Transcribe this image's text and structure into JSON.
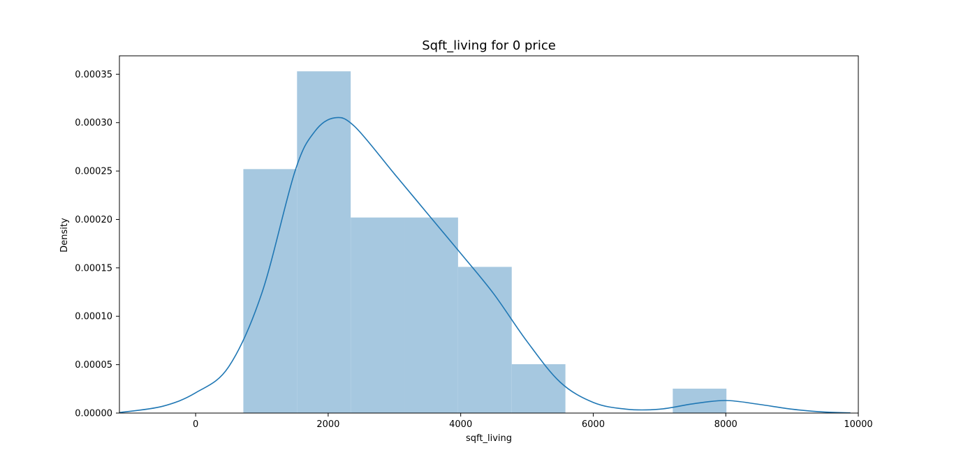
{
  "chart_data": {
    "type": "bar",
    "title": "Sqft_living for 0 price",
    "xlabel": "sqft_living",
    "ylabel": "Density",
    "xlim": [
      -1150,
      10000
    ],
    "ylim": [
      0,
      0.000369
    ],
    "grid": false,
    "legend": "none",
    "x_ticks": [
      0,
      2000,
      4000,
      6000,
      8000,
      10000
    ],
    "x_tick_labels": [
      "0",
      "2000",
      "4000",
      "6000",
      "8000",
      "10000"
    ],
    "y_ticks": [
      0,
      5e-05,
      0.0001,
      0.00015,
      0.0002,
      0.00025,
      0.0003,
      0.00035
    ],
    "y_tick_labels": [
      "0.00000",
      "0.00005",
      "0.00010",
      "0.00015",
      "0.00020",
      "0.00025",
      "0.00030",
      "0.00035"
    ],
    "histogram": {
      "color": "#a6c8e0",
      "bins": [
        {
          "start": 720,
          "end": 1530,
          "density": 0.000252
        },
        {
          "start": 1530,
          "end": 2340,
          "density": 0.000353
        },
        {
          "start": 2340,
          "end": 3150,
          "density": 0.000202
        },
        {
          "start": 3150,
          "end": 3960,
          "density": 0.000202
        },
        {
          "start": 3960,
          "end": 4770,
          "density": 0.000151
        },
        {
          "start": 4770,
          "end": 5580,
          "density": 5.05e-05
        },
        {
          "start": 5580,
          "end": 6390,
          "density": 0
        },
        {
          "start": 6390,
          "end": 7200,
          "density": 0
        },
        {
          "start": 7200,
          "end": 8010,
          "density": 2.52e-05
        }
      ]
    },
    "kde": {
      "color": "#1f77b4",
      "x": [
        -1150,
        -500,
        0,
        500,
        1000,
        1500,
        1800,
        2100,
        2400,
        3000,
        3500,
        4000,
        4500,
        5000,
        5500,
        6000,
        6500,
        7000,
        7500,
        8000,
        8500,
        9000,
        9500,
        9880
      ],
      "y": [
        5e-07,
        7e-06,
        2.1e-05,
        4.8e-05,
        0.000124,
        0.00025,
        0.000291,
        0.000305,
        0.000296,
        0.000247,
        0.000206,
        0.000165,
        0.000123,
        7.4e-05,
        3.2e-05,
        1.1e-05,
        4e-06,
        4e-06,
        9.5e-06,
        1.3e-05,
        9e-06,
        4e-06,
        1e-06,
        2e-07
      ]
    }
  }
}
